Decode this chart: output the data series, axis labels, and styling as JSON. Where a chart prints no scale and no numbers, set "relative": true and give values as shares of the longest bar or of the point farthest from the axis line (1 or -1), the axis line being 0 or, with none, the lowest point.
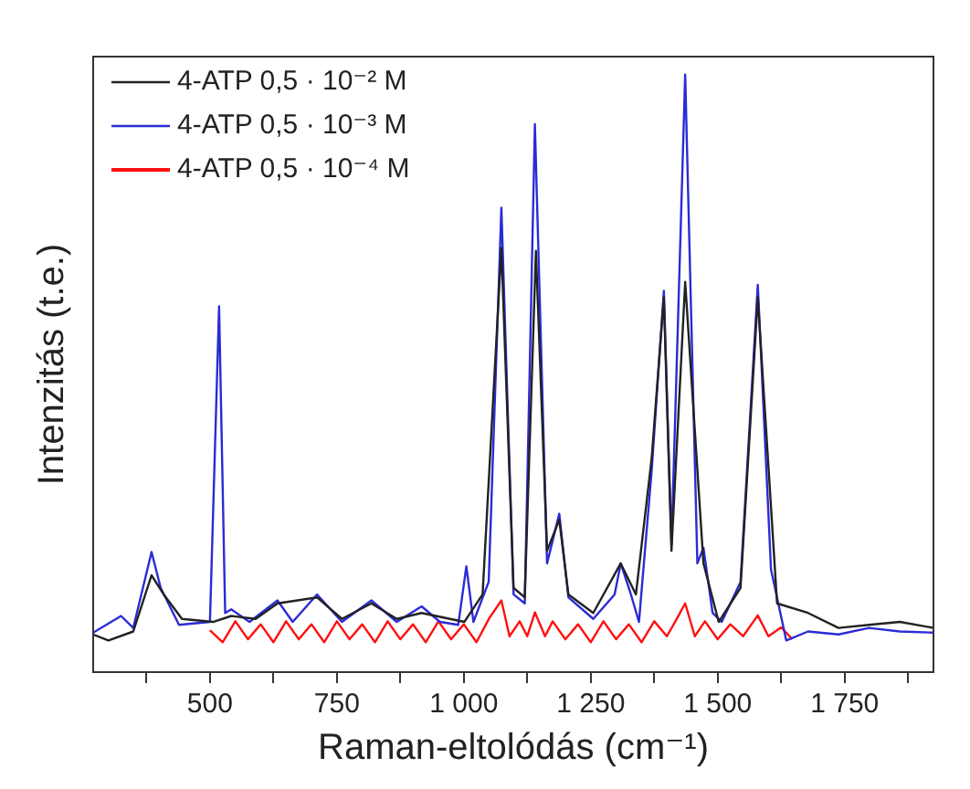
{
  "chart_data": {
    "type": "line",
    "xlabel": "Raman-eltolódás (cm⁻¹)",
    "ylabel": "Intenzitás (t.e.)",
    "relative": true,
    "xlim": [
      270,
      1925
    ],
    "xticks": [
      {
        "value": 375,
        "label": null
      },
      500,
      {
        "value": 625,
        "label": null
      },
      750,
      {
        "value": 875,
        "label": null
      },
      {
        "value": 1000,
        "label": "1 000"
      },
      {
        "value": 1125,
        "label": null
      },
      {
        "value": 1250,
        "label": "1 250"
      },
      {
        "value": 1375,
        "label": null
      },
      {
        "value": 1500,
        "label": "1 500"
      },
      {
        "value": 1625,
        "label": null
      },
      {
        "value": 1750,
        "label": "1 750"
      },
      {
        "value": 1875,
        "label": null
      }
    ],
    "legend": "top left",
    "marker": "none",
    "line_style": "solid",
    "grid": false,
    "series": [
      {
        "name": "4-ATP 0,5 · 10⁻² M",
        "color": "#222222",
        "x": [
          270,
          300,
          349,
          385,
          409,
          445,
          506,
          542,
          590,
          633,
          711,
          760,
          818,
          868,
          917,
          1001,
          1037,
          1074,
          1098,
          1120,
          1142,
          1164,
          1188,
          1206,
          1255,
          1309,
          1339,
          1370,
          1394,
          1409,
          1436,
          1472,
          1502,
          1545,
          1579,
          1617,
          1678,
          1738,
          1798,
          1859,
          1925
        ],
        "values": [
          0.063,
          0.053,
          0.068,
          0.162,
          0.13,
          0.089,
          0.084,
          0.094,
          0.089,
          0.115,
          0.125,
          0.089,
          0.115,
          0.089,
          0.099,
          0.084,
          0.13,
          0.71,
          0.141,
          0.125,
          0.705,
          0.203,
          0.255,
          0.13,
          0.099,
          0.182,
          0.13,
          0.358,
          0.627,
          0.203,
          0.653,
          0.182,
          0.084,
          0.141,
          0.627,
          0.115,
          0.099,
          0.074,
          0.079,
          0.084,
          0.074
        ]
      },
      {
        "name": "4-ATP 0,5 · 10⁻³ M",
        "color": "#2b2bd6",
        "x": [
          270,
          325,
          349,
          385,
          403,
          439,
          500,
          518,
          530,
          542,
          578,
          633,
          663,
          711,
          760,
          818,
          868,
          917,
          953,
          989,
          1005,
          1019,
          1049,
          1074,
          1098,
          1120,
          1140,
          1164,
          1188,
          1206,
          1255,
          1297,
          1309,
          1327,
          1345,
          1370,
          1394,
          1409,
          1436,
          1460,
          1472,
          1490,
          1508,
          1545,
          1579,
          1605,
          1635,
          1678,
          1738,
          1798,
          1859,
          1925
        ],
        "values": [
          0.066,
          0.094,
          0.074,
          0.201,
          0.141,
          0.079,
          0.084,
          0.612,
          0.099,
          0.105,
          0.084,
          0.12,
          0.084,
          0.13,
          0.084,
          0.12,
          0.084,
          0.11,
          0.084,
          0.079,
          0.177,
          0.084,
          0.151,
          0.777,
          0.13,
          0.115,
          0.917,
          0.182,
          0.265,
          0.125,
          0.089,
          0.13,
          0.182,
          0.136,
          0.084,
          0.337,
          0.638,
          0.213,
          1.0,
          0.182,
          0.208,
          0.099,
          0.084,
          0.151,
          0.648,
          0.172,
          0.053,
          0.068,
          0.063,
          0.074,
          0.068,
          0.066
        ]
      },
      {
        "name": "4-ATP 0,5 · 10⁻⁴ M",
        "color": "#ff1010",
        "x": [
          500,
          525,
          550,
          575,
          600,
          625,
          650,
          675,
          700,
          725,
          750,
          775,
          800,
          825,
          850,
          875,
          900,
          925,
          950,
          975,
          1000,
          1025,
          1050,
          1074,
          1090,
          1110,
          1125,
          1140,
          1160,
          1175,
          1200,
          1225,
          1250,
          1275,
          1300,
          1325,
          1350,
          1375,
          1400,
          1420,
          1436,
          1455,
          1475,
          1500,
          1525,
          1550,
          1579,
          1600,
          1625,
          1647
        ],
        "values": [
          0.07,
          0.05,
          0.085,
          0.055,
          0.08,
          0.05,
          0.085,
          0.055,
          0.08,
          0.05,
          0.085,
          0.055,
          0.08,
          0.05,
          0.085,
          0.055,
          0.08,
          0.05,
          0.085,
          0.055,
          0.08,
          0.05,
          0.09,
          0.12,
          0.06,
          0.085,
          0.06,
          0.1,
          0.06,
          0.085,
          0.055,
          0.08,
          0.05,
          0.085,
          0.055,
          0.08,
          0.05,
          0.085,
          0.06,
          0.09,
          0.115,
          0.06,
          0.085,
          0.055,
          0.08,
          0.06,
          0.095,
          0.06,
          0.075,
          0.055
        ]
      }
    ]
  }
}
